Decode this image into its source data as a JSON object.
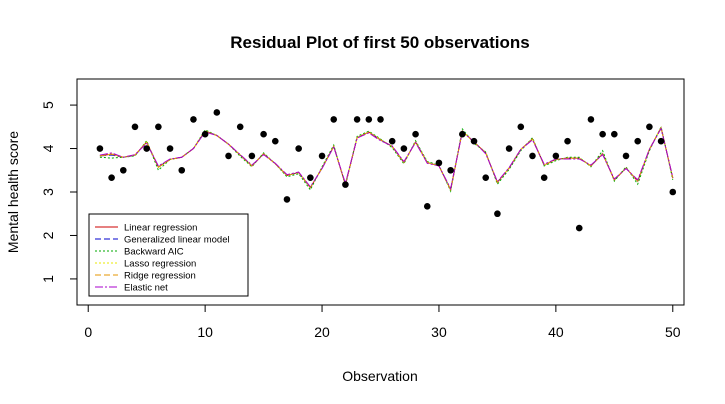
{
  "chart_data": {
    "type": "line",
    "title": "Residual Plot of first 50 observations",
    "xlabel": "Observation",
    "ylabel": "Mental health score",
    "xlim": [
      -0.96,
      50.96
    ],
    "ylim": [
      0.4,
      5.6
    ],
    "xticks": [
      0,
      10,
      20,
      30,
      40,
      50
    ],
    "yticks": [
      1,
      2,
      3,
      4,
      5
    ],
    "legend_position": "bottom-left",
    "observed": {
      "x": [
        1,
        2,
        3,
        4,
        5,
        6,
        7,
        8,
        9,
        10,
        11,
        12,
        13,
        14,
        15,
        16,
        17,
        18,
        19,
        20,
        21,
        22,
        23,
        24,
        25,
        26,
        27,
        28,
        29,
        30,
        31,
        32,
        33,
        34,
        35,
        36,
        37,
        38,
        39,
        40,
        41,
        42,
        43,
        44,
        45,
        46,
        47,
        48,
        49,
        50
      ],
      "y": [
        4.0,
        3.33,
        3.5,
        4.5,
        4.0,
        4.5,
        4.0,
        3.5,
        4.67,
        4.33,
        4.83,
        3.83,
        4.5,
        3.83,
        4.33,
        4.17,
        2.83,
        4.0,
        3.33,
        3.83,
        4.67,
        3.17,
        4.67,
        4.67,
        4.67,
        4.17,
        4.0,
        4.33,
        2.67,
        3.67,
        3.5,
        4.33,
        4.17,
        3.33,
        2.5,
        4.0,
        4.5,
        3.83,
        3.33,
        3.83,
        4.17,
        2.17,
        4.67,
        4.33,
        4.33,
        3.83,
        4.17,
        4.5,
        4.17,
        3.0
      ]
    },
    "series": [
      {
        "name": "Linear regression",
        "color": "#cc0000",
        "dash": "solid",
        "values": [
          3.83,
          3.87,
          3.8,
          3.85,
          4.15,
          3.57,
          3.75,
          3.8,
          4.0,
          4.4,
          4.3,
          4.1,
          3.85,
          3.6,
          3.88,
          3.65,
          3.38,
          3.45,
          3.1,
          3.55,
          4.05,
          3.17,
          4.25,
          4.38,
          4.2,
          4.05,
          3.68,
          4.15,
          3.68,
          3.6,
          3.05,
          4.4,
          4.15,
          3.9,
          3.22,
          3.55,
          3.98,
          4.22,
          3.62,
          3.75,
          3.78,
          3.78,
          3.6,
          3.88,
          3.28,
          3.55,
          3.25,
          3.98,
          4.48,
          3.32
        ]
      },
      {
        "name": "Generalized linear model",
        "color": "#0000cc",
        "dash": "6,3",
        "values": [
          3.83,
          3.85,
          3.8,
          3.84,
          4.15,
          3.58,
          3.75,
          3.8,
          4.0,
          4.4,
          4.3,
          4.1,
          3.85,
          3.6,
          3.88,
          3.65,
          3.38,
          3.45,
          3.1,
          3.55,
          4.05,
          3.17,
          4.25,
          4.38,
          4.2,
          4.05,
          3.68,
          4.15,
          3.68,
          3.6,
          3.05,
          4.4,
          4.15,
          3.9,
          3.22,
          3.55,
          3.98,
          4.22,
          3.62,
          3.75,
          3.78,
          3.78,
          3.6,
          3.88,
          3.28,
          3.55,
          3.25,
          3.98,
          4.48,
          3.32
        ]
      },
      {
        "name": "Backward AIC",
        "color": "#00aa00",
        "dash": "2,2",
        "values": [
          3.8,
          3.78,
          3.8,
          3.83,
          4.18,
          3.5,
          3.75,
          3.8,
          4.0,
          4.43,
          4.3,
          4.1,
          3.82,
          3.58,
          3.9,
          3.65,
          3.35,
          3.42,
          3.05,
          3.58,
          4.08,
          3.15,
          4.28,
          4.4,
          4.22,
          4.02,
          3.65,
          4.18,
          3.7,
          3.62,
          3.02,
          4.45,
          4.12,
          3.92,
          3.18,
          3.52,
          3.95,
          4.25,
          3.6,
          3.72,
          3.8,
          3.8,
          3.58,
          3.95,
          3.25,
          3.58,
          3.18,
          3.95,
          4.5,
          3.28
        ]
      },
      {
        "name": "Lasso regression",
        "color": "#e8e800",
        "dash": "2,2",
        "values": [
          3.83,
          3.87,
          3.8,
          3.85,
          4.15,
          3.57,
          3.75,
          3.8,
          4.0,
          4.4,
          4.3,
          4.1,
          3.85,
          3.6,
          3.88,
          3.65,
          3.38,
          3.45,
          3.1,
          3.55,
          4.05,
          3.17,
          4.25,
          4.38,
          4.2,
          4.05,
          3.68,
          4.15,
          3.68,
          3.6,
          3.05,
          4.4,
          4.15,
          3.9,
          3.22,
          3.55,
          3.98,
          4.22,
          3.62,
          3.75,
          3.78,
          3.78,
          3.6,
          3.88,
          3.28,
          3.55,
          3.25,
          3.98,
          4.48,
          3.32
        ]
      },
      {
        "name": "Ridge regression",
        "color": "#e69500",
        "dash": "6,3",
        "values": [
          3.83,
          3.87,
          3.8,
          3.85,
          4.15,
          3.57,
          3.75,
          3.8,
          4.0,
          4.4,
          4.3,
          4.1,
          3.85,
          3.6,
          3.88,
          3.65,
          3.38,
          3.45,
          3.1,
          3.55,
          4.05,
          3.17,
          4.25,
          4.38,
          4.2,
          4.05,
          3.68,
          4.15,
          3.68,
          3.6,
          3.05,
          4.4,
          4.15,
          3.9,
          3.22,
          3.55,
          3.98,
          4.22,
          3.62,
          3.75,
          3.78,
          3.78,
          3.6,
          3.88,
          3.28,
          3.55,
          3.25,
          3.98,
          4.48,
          3.32
        ]
      },
      {
        "name": "Elastic net",
        "color": "#aa00cc",
        "dash": "8,2,2,2",
        "values": [
          3.85,
          3.9,
          3.8,
          3.86,
          4.12,
          3.6,
          3.76,
          3.8,
          4.0,
          4.38,
          4.3,
          4.1,
          3.86,
          3.62,
          3.86,
          3.66,
          3.4,
          3.46,
          3.12,
          3.54,
          4.04,
          3.2,
          4.24,
          4.36,
          4.18,
          4.06,
          3.7,
          4.14,
          3.66,
          3.6,
          3.08,
          4.38,
          4.16,
          3.88,
          3.24,
          3.56,
          3.98,
          4.2,
          3.64,
          3.76,
          3.76,
          3.76,
          3.62,
          3.86,
          3.3,
          3.54,
          3.28,
          3.98,
          4.46,
          3.34
        ]
      }
    ]
  }
}
